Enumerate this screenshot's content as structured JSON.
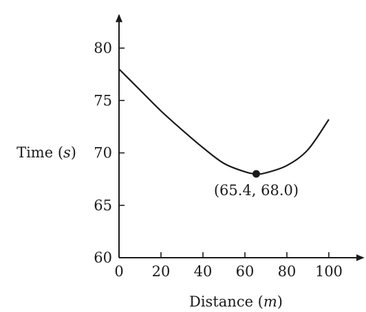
{
  "chart_data": {
    "type": "line",
    "xlabel": "Distance (m)",
    "xlabel_main": "Distance (",
    "xlabel_unit": "m",
    "xlabel_close": ")",
    "ylabel": "Time (s)",
    "ylabel_main": "Time (",
    "ylabel_unit": "s",
    "ylabel_close": ")",
    "xlim": [
      0,
      115
    ],
    "ylim": [
      60,
      83
    ],
    "xticks": [
      0,
      20,
      40,
      60,
      80,
      100
    ],
    "yticks": [
      60,
      65,
      70,
      75,
      80
    ],
    "grid": false,
    "series": [
      {
        "x": [
          0,
          10,
          20,
          30,
          40,
          50,
          60,
          65.4,
          70,
          80,
          90,
          100
        ],
        "y": [
          78.0,
          76.0,
          74.0,
          72.2,
          70.5,
          69.0,
          68.2,
          68.0,
          68.1,
          68.8,
          70.3,
          73.2
        ]
      }
    ],
    "annotations": [
      {
        "x": 65.4,
        "y": 68.0,
        "text": "(65.4, 68.0)"
      }
    ]
  }
}
